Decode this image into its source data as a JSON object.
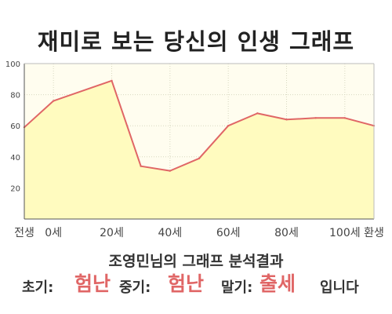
{
  "title": "재미로 보는 당신의 인생 그래프",
  "subtitle": "조영민님의 그래프 분석결과",
  "summary": {
    "early_label": "초기:",
    "early_value": "험난",
    "middle_label": "중기:",
    "middle_value": "험난",
    "late_label": "말기:",
    "late_value": "출세",
    "ending": "입니다"
  },
  "colors": {
    "line": "#e06666",
    "fill": "#fffbbf",
    "plot_bg": "#fffdef",
    "accent_text": "#e06666"
  },
  "chart_data": {
    "type": "area",
    "title": "재미로 보는 당신의 인생 그래프",
    "xlabel": "",
    "ylabel": "",
    "x_categories": [
      "전생",
      "0세",
      "20세",
      "40세",
      "60세",
      "80세",
      "100세",
      "환생"
    ],
    "points": [
      {
        "x": "전생",
        "y": 59
      },
      {
        "x": "0세",
        "y": 76
      },
      {
        "x": "20세",
        "y": 89
      },
      {
        "x": "30세",
        "y": 34
      },
      {
        "x": "40세",
        "y": 31
      },
      {
        "x": "50세",
        "y": 39
      },
      {
        "x": "60세",
        "y": 60
      },
      {
        "x": "70세",
        "y": 68
      },
      {
        "x": "80세",
        "y": 64
      },
      {
        "x": "90세",
        "y": 65
      },
      {
        "x": "100세",
        "y": 65
      },
      {
        "x": "환생",
        "y": 60
      }
    ],
    "ylim": [
      0,
      100
    ],
    "y_ticks": [
      20,
      40,
      60,
      80,
      100
    ],
    "grid": true,
    "legend": "none"
  }
}
